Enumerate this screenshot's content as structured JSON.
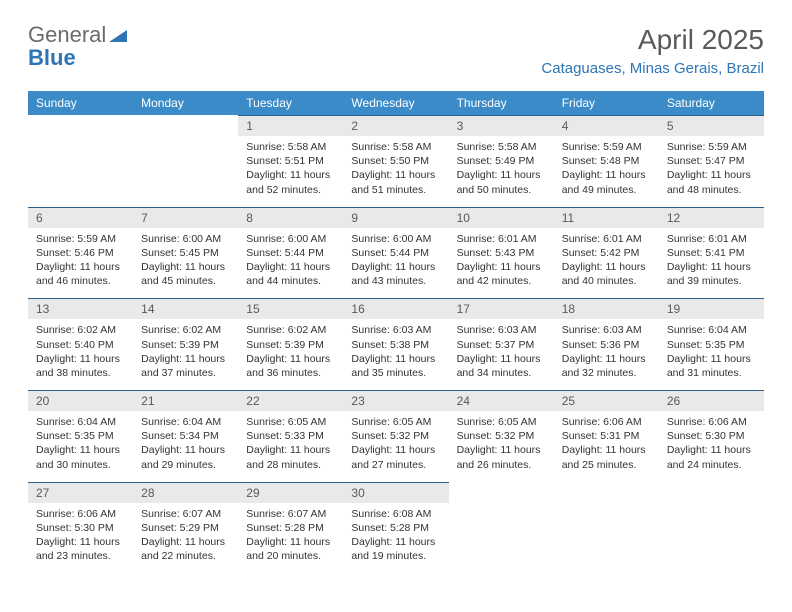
{
  "logo": {
    "text1": "General",
    "text2": "Blue"
  },
  "title": "April 2025",
  "location": "Cataguases, Minas Gerais, Brazil",
  "colors": {
    "header_bg": "#3b8bc9",
    "header_text": "#ffffff",
    "daynum_bg": "#e9e9e9",
    "daynum_text": "#5a5a5a",
    "border": "#2e5f8a",
    "logo_gray": "#6b6b6b",
    "logo_blue": "#2e75b6"
  },
  "weekdays": [
    "Sunday",
    "Monday",
    "Tuesday",
    "Wednesday",
    "Thursday",
    "Friday",
    "Saturday"
  ],
  "weeks": [
    [
      null,
      null,
      {
        "d": "1",
        "sr": "5:58 AM",
        "ss": "5:51 PM",
        "dl": "11 hours and 52 minutes."
      },
      {
        "d": "2",
        "sr": "5:58 AM",
        "ss": "5:50 PM",
        "dl": "11 hours and 51 minutes."
      },
      {
        "d": "3",
        "sr": "5:58 AM",
        "ss": "5:49 PM",
        "dl": "11 hours and 50 minutes."
      },
      {
        "d": "4",
        "sr": "5:59 AM",
        "ss": "5:48 PM",
        "dl": "11 hours and 49 minutes."
      },
      {
        "d": "5",
        "sr": "5:59 AM",
        "ss": "5:47 PM",
        "dl": "11 hours and 48 minutes."
      }
    ],
    [
      {
        "d": "6",
        "sr": "5:59 AM",
        "ss": "5:46 PM",
        "dl": "11 hours and 46 minutes."
      },
      {
        "d": "7",
        "sr": "6:00 AM",
        "ss": "5:45 PM",
        "dl": "11 hours and 45 minutes."
      },
      {
        "d": "8",
        "sr": "6:00 AM",
        "ss": "5:44 PM",
        "dl": "11 hours and 44 minutes."
      },
      {
        "d": "9",
        "sr": "6:00 AM",
        "ss": "5:44 PM",
        "dl": "11 hours and 43 minutes."
      },
      {
        "d": "10",
        "sr": "6:01 AM",
        "ss": "5:43 PM",
        "dl": "11 hours and 42 minutes."
      },
      {
        "d": "11",
        "sr": "6:01 AM",
        "ss": "5:42 PM",
        "dl": "11 hours and 40 minutes."
      },
      {
        "d": "12",
        "sr": "6:01 AM",
        "ss": "5:41 PM",
        "dl": "11 hours and 39 minutes."
      }
    ],
    [
      {
        "d": "13",
        "sr": "6:02 AM",
        "ss": "5:40 PM",
        "dl": "11 hours and 38 minutes."
      },
      {
        "d": "14",
        "sr": "6:02 AM",
        "ss": "5:39 PM",
        "dl": "11 hours and 37 minutes."
      },
      {
        "d": "15",
        "sr": "6:02 AM",
        "ss": "5:39 PM",
        "dl": "11 hours and 36 minutes."
      },
      {
        "d": "16",
        "sr": "6:03 AM",
        "ss": "5:38 PM",
        "dl": "11 hours and 35 minutes."
      },
      {
        "d": "17",
        "sr": "6:03 AM",
        "ss": "5:37 PM",
        "dl": "11 hours and 34 minutes."
      },
      {
        "d": "18",
        "sr": "6:03 AM",
        "ss": "5:36 PM",
        "dl": "11 hours and 32 minutes."
      },
      {
        "d": "19",
        "sr": "6:04 AM",
        "ss": "5:35 PM",
        "dl": "11 hours and 31 minutes."
      }
    ],
    [
      {
        "d": "20",
        "sr": "6:04 AM",
        "ss": "5:35 PM",
        "dl": "11 hours and 30 minutes."
      },
      {
        "d": "21",
        "sr": "6:04 AM",
        "ss": "5:34 PM",
        "dl": "11 hours and 29 minutes."
      },
      {
        "d": "22",
        "sr": "6:05 AM",
        "ss": "5:33 PM",
        "dl": "11 hours and 28 minutes."
      },
      {
        "d": "23",
        "sr": "6:05 AM",
        "ss": "5:32 PM",
        "dl": "11 hours and 27 minutes."
      },
      {
        "d": "24",
        "sr": "6:05 AM",
        "ss": "5:32 PM",
        "dl": "11 hours and 26 minutes."
      },
      {
        "d": "25",
        "sr": "6:06 AM",
        "ss": "5:31 PM",
        "dl": "11 hours and 25 minutes."
      },
      {
        "d": "26",
        "sr": "6:06 AM",
        "ss": "5:30 PM",
        "dl": "11 hours and 24 minutes."
      }
    ],
    [
      {
        "d": "27",
        "sr": "6:06 AM",
        "ss": "5:30 PM",
        "dl": "11 hours and 23 minutes."
      },
      {
        "d": "28",
        "sr": "6:07 AM",
        "ss": "5:29 PM",
        "dl": "11 hours and 22 minutes."
      },
      {
        "d": "29",
        "sr": "6:07 AM",
        "ss": "5:28 PM",
        "dl": "11 hours and 20 minutes."
      },
      {
        "d": "30",
        "sr": "6:08 AM",
        "ss": "5:28 PM",
        "dl": "11 hours and 19 minutes."
      },
      null,
      null,
      null
    ]
  ],
  "labels": {
    "sunrise": "Sunrise:",
    "sunset": "Sunset:",
    "daylight": "Daylight:"
  }
}
